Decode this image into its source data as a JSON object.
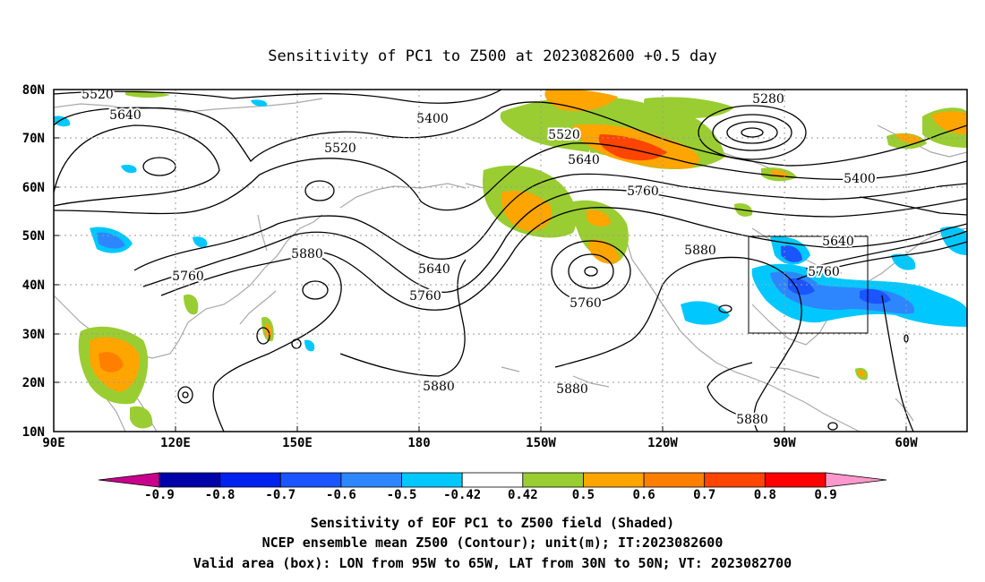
{
  "title": "Sensitivity of PC1 to Z500 at 2023082600 +0.5 day",
  "lat_labels": [
    "80N",
    "70N",
    "60N",
    "50N",
    "40N",
    "30N",
    "20N",
    "10N"
  ],
  "lon_labels": [
    "90E",
    "120E",
    "150E",
    "180",
    "150W",
    "120W",
    "90W",
    "60W"
  ],
  "contour_labels": [
    {
      "id": "c5520a",
      "text": "5520"
    },
    {
      "id": "c5640a",
      "text": "5640"
    },
    {
      "id": "c5400a",
      "text": "5400"
    },
    {
      "id": "c5520b",
      "text": "5520"
    },
    {
      "id": "c5520c",
      "text": "5520"
    },
    {
      "id": "c5640b",
      "text": "5640"
    },
    {
      "id": "c5280",
      "text": "5280"
    },
    {
      "id": "c5760a",
      "text": "5760"
    },
    {
      "id": "c5400b",
      "text": "5400"
    },
    {
      "id": "c5880a",
      "text": "5880"
    },
    {
      "id": "c5760b",
      "text": "5760"
    },
    {
      "id": "c5640c",
      "text": "5640"
    },
    {
      "id": "c5760c",
      "text": "5760"
    },
    {
      "id": "c5760d",
      "text": "5760"
    },
    {
      "id": "c5880b",
      "text": "5880"
    },
    {
      "id": "c5640d",
      "text": "5640"
    },
    {
      "id": "c5760e",
      "text": "5760"
    },
    {
      "id": "c5880c",
      "text": "5880"
    },
    {
      "id": "c5880d",
      "text": "5880"
    },
    {
      "id": "c5880e",
      "text": "5880"
    }
  ],
  "colorbar": {
    "labels": [
      "-0.9",
      "-0.8",
      "-0.7",
      "-0.6",
      "-0.5",
      "-0.42",
      "0.42",
      "0.5",
      "0.6",
      "0.7",
      "0.8",
      "0.9"
    ],
    "colors": [
      "#0000a8",
      "#0022ee",
      "#1a55ff",
      "#2e86ff",
      "#00c8ff",
      "#ffffff",
      "#9acd32",
      "#ffa500",
      "#ff7f00",
      "#ff4500",
      "#ff0000"
    ],
    "low_extend": "#c8008c",
    "high_extend": "#ff99cc"
  },
  "footer": {
    "line1": "Sensitivity of EOF PC1 to Z500 field (Shaded)",
    "line2": "NCEP ensemble mean Z500 (Contour); unit(m); IT:2023082600",
    "line3": "Valid area (box): LON from 95W to 65W, LAT from 30N to 50N; VT: 2023082700"
  }
}
